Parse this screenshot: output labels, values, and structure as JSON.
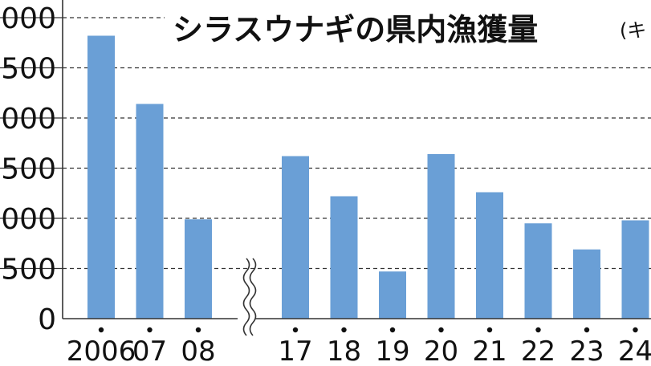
{
  "chart_data": {
    "type": "bar",
    "title": "シラスウナギの県内漁獲量",
    "unit_note": "(キ",
    "ytick_labels": [
      "0",
      "500",
      "000",
      "500",
      "000",
      "500",
      "000"
    ],
    "ylim": [
      0,
      3000
    ],
    "ytick_step": 500,
    "grid": true,
    "axis_break_after": "08",
    "categories": [
      "2006",
      "07",
      "08",
      "17",
      "18",
      "19",
      "20",
      "21",
      "22",
      "23",
      "24"
    ],
    "values": [
      2820,
      2140,
      990,
      1620,
      1220,
      470,
      1640,
      1260,
      950,
      690,
      980
    ],
    "bar_color": "#6a9fd6"
  }
}
